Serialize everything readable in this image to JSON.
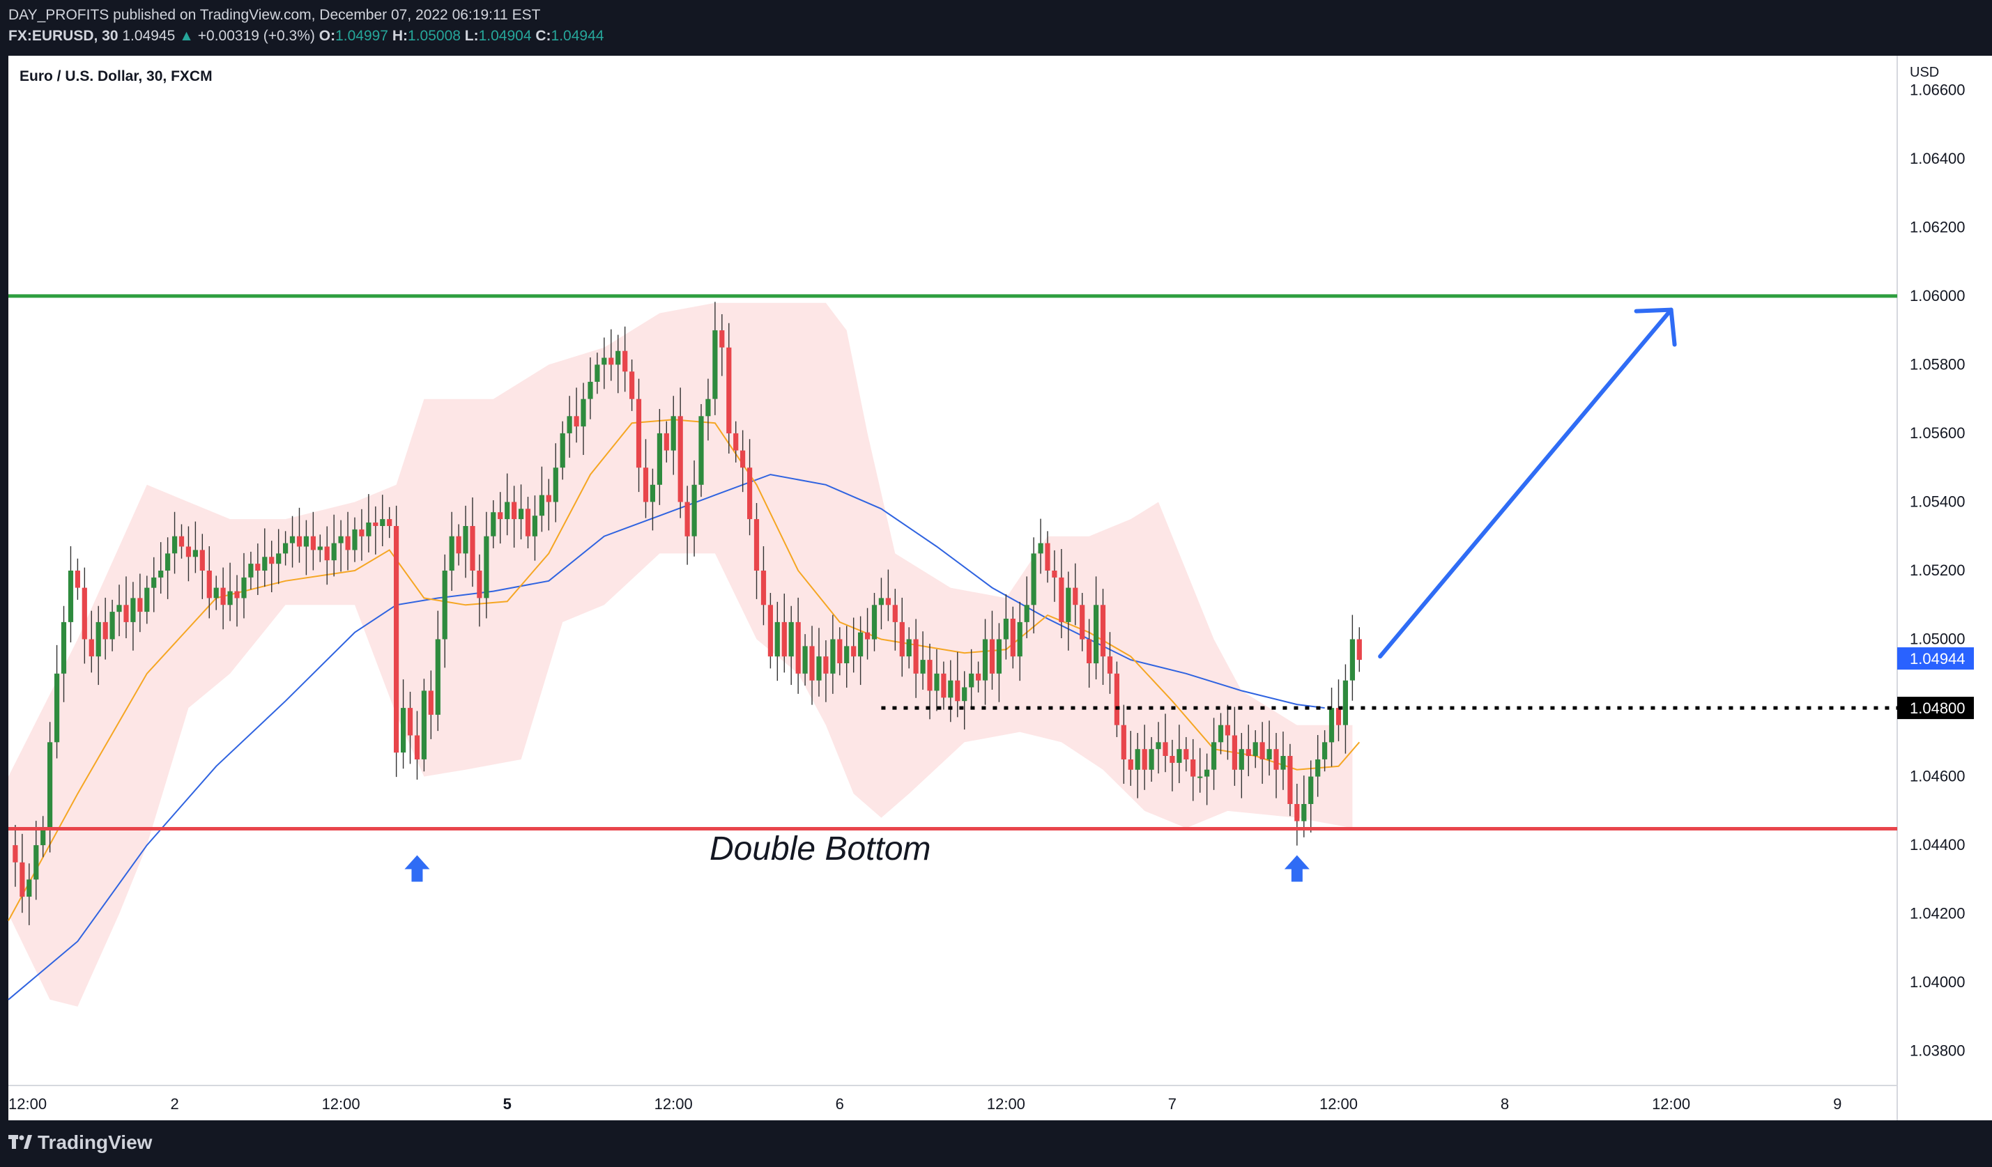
{
  "header": {
    "author": "DAY_PROFITS",
    "publish_text": "published on TradingView.com, December 07, 2022 06:19:11 EST",
    "symbol": "FX:EURUSD, 30",
    "last_price": "1.04945",
    "change": "+0.00319 (+0.3%)",
    "open_label": "O:",
    "open": "1.04997",
    "high_label": "H:",
    "high": "1.05008",
    "low_label": "L:",
    "low": "1.04904",
    "close_label": "C:",
    "close": "1.04944"
  },
  "footer": {
    "brand": "TradingView"
  },
  "colors": {
    "background": "#131722",
    "plot_bg": "#ffffff",
    "candle_up": "#2e8b3e",
    "candle_down": "#e8454b",
    "ema_fast": "#f5a623",
    "ema_slow": "#2f63e0",
    "band_fill": "#fde3e3",
    "resistance": "#2e9e3f",
    "support": "#e8454b",
    "arrow": "#2f6cf5",
    "price_badge": "#2962ff"
  },
  "chart_data": {
    "type": "candlestick",
    "title": "Euro / U.S. Dollar, 30, FXCM",
    "currency": "USD",
    "ylim": [
      1.037,
      1.067
    ],
    "y_ticks": [
      "1.06600",
      "1.06400",
      "1.06200",
      "1.06000",
      "1.05800",
      "1.05600",
      "1.05400",
      "1.05200",
      "1.05000",
      "1.04600",
      "1.04400",
      "1.04200",
      "1.04000",
      "1.03800"
    ],
    "y_tick_values": [
      1.066,
      1.064,
      1.062,
      1.06,
      1.058,
      1.056,
      1.054,
      1.052,
      1.05,
      1.046,
      1.044,
      1.042,
      1.04,
      1.038
    ],
    "x_ticks": [
      {
        "label": "12:00",
        "t": 0
      },
      {
        "label": "2",
        "t": 24
      },
      {
        "label": "12:00",
        "t": 48
      },
      {
        "label": "5",
        "t": 72
      },
      {
        "label": "12:00",
        "t": 96
      },
      {
        "label": "6",
        "t": 120
      },
      {
        "label": "12:00",
        "t": 144
      },
      {
        "label": "7",
        "t": 168
      },
      {
        "label": "12:00",
        "t": 192
      },
      {
        "label": "8",
        "t": 216
      },
      {
        "label": "12:00",
        "t": 240
      },
      {
        "label": "9",
        "t": 264
      }
    ],
    "x_range": [
      0,
      272
    ],
    "resistance_level": 1.06,
    "support_level": 1.04448,
    "neckline_level": 1.048,
    "neckline_label": "1.04800",
    "current_price": 1.04944,
    "current_price_label": "1.04944",
    "annotation": "Double Bottom",
    "bottom_markers_t": [
      59,
      186
    ],
    "projection": {
      "from": [
        198,
        1.0495
      ],
      "to": [
        240,
        1.0596
      ]
    },
    "close_path": [
      [
        0,
        1.044
      ],
      [
        1,
        1.0435
      ],
      [
        2,
        1.0425
      ],
      [
        3,
        1.043
      ],
      [
        4,
        1.044
      ],
      [
        5,
        1.0445
      ],
      [
        6,
        1.047
      ],
      [
        7,
        1.049
      ],
      [
        8,
        1.0505
      ],
      [
        9,
        1.052
      ],
      [
        10,
        1.0515
      ],
      [
        11,
        1.05
      ],
      [
        12,
        1.0495
      ],
      [
        13,
        1.0505
      ],
      [
        14,
        1.05
      ],
      [
        15,
        1.0508
      ],
      [
        16,
        1.051
      ],
      [
        17,
        1.0505
      ],
      [
        18,
        1.0512
      ],
      [
        19,
        1.0508
      ],
      [
        20,
        1.0515
      ],
      [
        21,
        1.0518
      ],
      [
        22,
        1.052
      ],
      [
        23,
        1.0525
      ],
      [
        24,
        1.053
      ],
      [
        25,
        1.0527
      ],
      [
        26,
        1.0524
      ],
      [
        27,
        1.0526
      ],
      [
        28,
        1.052
      ],
      [
        29,
        1.0512
      ],
      [
        30,
        1.0515
      ],
      [
        31,
        1.051
      ],
      [
        32,
        1.0514
      ],
      [
        33,
        1.0512
      ],
      [
        34,
        1.0518
      ],
      [
        35,
        1.0522
      ],
      [
        36,
        1.052
      ],
      [
        37,
        1.0524
      ],
      [
        38,
        1.0522
      ],
      [
        39,
        1.0525
      ],
      [
        40,
        1.0528
      ],
      [
        41,
        1.053
      ],
      [
        42,
        1.0527
      ],
      [
        43,
        1.053
      ],
      [
        44,
        1.0526
      ],
      [
        45,
        1.0527
      ],
      [
        46,
        1.0523
      ],
      [
        47,
        1.0528
      ],
      [
        48,
        1.053
      ],
      [
        49,
        1.0526
      ],
      [
        50,
        1.0532
      ],
      [
        51,
        1.053
      ],
      [
        52,
        1.0534
      ],
      [
        53,
        1.0533
      ],
      [
        54,
        1.0535
      ],
      [
        55,
        1.0533
      ],
      [
        56,
        1.0467
      ],
      [
        57,
        1.048
      ],
      [
        58,
        1.0472
      ],
      [
        59,
        1.0465
      ],
      [
        60,
        1.0485
      ],
      [
        61,
        1.0478
      ],
      [
        62,
        1.05
      ],
      [
        63,
        1.052
      ],
      [
        64,
        1.053
      ],
      [
        65,
        1.0525
      ],
      [
        66,
        1.0533
      ],
      [
        67,
        1.052
      ],
      [
        68,
        1.0512
      ],
      [
        69,
        1.053
      ],
      [
        70,
        1.0537
      ],
      [
        71,
        1.0535
      ],
      [
        72,
        1.054
      ],
      [
        73,
        1.0535
      ],
      [
        74,
        1.0538
      ],
      [
        75,
        1.053
      ],
      [
        76,
        1.0536
      ],
      [
        77,
        1.0542
      ],
      [
        78,
        1.054
      ],
      [
        79,
        1.055
      ],
      [
        80,
        1.056
      ],
      [
        81,
        1.0565
      ],
      [
        82,
        1.0562
      ],
      [
        83,
        1.057
      ],
      [
        84,
        1.0575
      ],
      [
        85,
        1.058
      ],
      [
        86,
        1.0582
      ],
      [
        87,
        1.058
      ],
      [
        88,
        1.0584
      ],
      [
        89,
        1.0578
      ],
      [
        90,
        1.057
      ],
      [
        91,
        1.055
      ],
      [
        92,
        1.054
      ],
      [
        93,
        1.0545
      ],
      [
        94,
        1.056
      ],
      [
        95,
        1.0555
      ],
      [
        96,
        1.0565
      ],
      [
        97,
        1.054
      ],
      [
        98,
        1.053
      ],
      [
        99,
        1.0545
      ],
      [
        100,
        1.0565
      ],
      [
        101,
        1.057
      ],
      [
        102,
        1.059
      ],
      [
        103,
        1.0585
      ],
      [
        104,
        1.056
      ],
      [
        105,
        1.0555
      ],
      [
        106,
        1.055
      ],
      [
        107,
        1.0535
      ],
      [
        108,
        1.052
      ],
      [
        109,
        1.051
      ],
      [
        110,
        1.0495
      ],
      [
        111,
        1.0505
      ],
      [
        112,
        1.0495
      ],
      [
        113,
        1.0505
      ],
      [
        114,
        1.049
      ],
      [
        115,
        1.0498
      ],
      [
        116,
        1.0488
      ],
      [
        117,
        1.0495
      ],
      [
        118,
        1.049
      ],
      [
        119,
        1.05
      ],
      [
        120,
        1.0493
      ],
      [
        121,
        1.0498
      ],
      [
        122,
        1.0495
      ],
      [
        123,
        1.0502
      ],
      [
        124,
        1.05
      ],
      [
        125,
        1.051
      ],
      [
        126,
        1.0512
      ],
      [
        127,
        1.051
      ],
      [
        128,
        1.0505
      ],
      [
        129,
        1.0495
      ],
      [
        130,
        1.05
      ],
      [
        131,
        1.049
      ],
      [
        132,
        1.0494
      ],
      [
        133,
        1.0485
      ],
      [
        134,
        1.049
      ],
      [
        135,
        1.0483
      ],
      [
        136,
        1.0488
      ],
      [
        137,
        1.0482
      ],
      [
        138,
        1.0486
      ],
      [
        139,
        1.049
      ],
      [
        140,
        1.0488
      ],
      [
        141,
        1.05
      ],
      [
        142,
        1.049
      ],
      [
        143,
        1.05
      ],
      [
        144,
        1.0506
      ],
      [
        145,
        1.0495
      ],
      [
        146,
        1.0505
      ],
      [
        147,
        1.051
      ],
      [
        148,
        1.0525
      ],
      [
        149,
        1.0528
      ],
      [
        150,
        1.052
      ],
      [
        151,
        1.0518
      ],
      [
        152,
        1.0505
      ],
      [
        153,
        1.0515
      ],
      [
        154,
        1.051
      ],
      [
        155,
        1.05
      ],
      [
        156,
        1.0493
      ],
      [
        157,
        1.051
      ],
      [
        158,
        1.0495
      ],
      [
        159,
        1.049
      ],
      [
        160,
        1.0475
      ],
      [
        161,
        1.0465
      ],
      [
        162,
        1.0462
      ],
      [
        163,
        1.0468
      ],
      [
        164,
        1.0462
      ],
      [
        165,
        1.0468
      ],
      [
        166,
        1.047
      ],
      [
        167,
        1.0466
      ],
      [
        168,
        1.0464
      ],
      [
        169,
        1.0468
      ],
      [
        170,
        1.0465
      ],
      [
        171,
        1.046
      ],
      [
        172,
        1.046
      ],
      [
        173,
        1.0462
      ],
      [
        174,
        1.047
      ],
      [
        175,
        1.0475
      ],
      [
        176,
        1.0472
      ],
      [
        177,
        1.0462
      ],
      [
        178,
        1.0468
      ],
      [
        179,
        1.0466
      ],
      [
        180,
        1.047
      ],
      [
        181,
        1.0465
      ],
      [
        182,
        1.0468
      ],
      [
        183,
        1.0462
      ],
      [
        184,
        1.0466
      ],
      [
        185,
        1.0452
      ],
      [
        186,
        1.0447
      ],
      [
        187,
        1.0452
      ],
      [
        188,
        1.046
      ],
      [
        189,
        1.0465
      ],
      [
        190,
        1.047
      ],
      [
        191,
        1.048
      ],
      [
        192,
        1.0475
      ],
      [
        193,
        1.0488
      ],
      [
        194,
        1.05
      ],
      [
        195,
        1.0494
      ]
    ],
    "ema_fast": [
      [
        0,
        1.0418
      ],
      [
        10,
        1.0455
      ],
      [
        20,
        1.049
      ],
      [
        30,
        1.0512
      ],
      [
        40,
        1.0517
      ],
      [
        50,
        1.052
      ],
      [
        55,
        1.0526
      ],
      [
        60,
        1.0512
      ],
      [
        66,
        1.051
      ],
      [
        72,
        1.0511
      ],
      [
        78,
        1.0525
      ],
      [
        84,
        1.0548
      ],
      [
        90,
        1.0563
      ],
      [
        96,
        1.0564
      ],
      [
        102,
        1.0563
      ],
      [
        108,
        1.0545
      ],
      [
        114,
        1.052
      ],
      [
        120,
        1.0505
      ],
      [
        126,
        1.05
      ],
      [
        132,
        1.0498
      ],
      [
        138,
        1.0496
      ],
      [
        144,
        1.0497
      ],
      [
        150,
        1.0507
      ],
      [
        156,
        1.0502
      ],
      [
        162,
        1.0495
      ],
      [
        168,
        1.0482
      ],
      [
        174,
        1.0468
      ],
      [
        180,
        1.0466
      ],
      [
        186,
        1.0462
      ],
      [
        192,
        1.0463
      ],
      [
        195,
        1.047
      ]
    ],
    "ema_slow": [
      [
        0,
        1.0395
      ],
      [
        10,
        1.0412
      ],
      [
        20,
        1.044
      ],
      [
        30,
        1.0463
      ],
      [
        40,
        1.0482
      ],
      [
        50,
        1.0502
      ],
      [
        56,
        1.051
      ],
      [
        62,
        1.0512
      ],
      [
        70,
        1.0514
      ],
      [
        78,
        1.0517
      ],
      [
        86,
        1.053
      ],
      [
        94,
        1.0536
      ],
      [
        102,
        1.0542
      ],
      [
        110,
        1.0548
      ],
      [
        118,
        1.0545
      ],
      [
        126,
        1.0538
      ],
      [
        134,
        1.0527
      ],
      [
        142,
        1.0515
      ],
      [
        150,
        1.0506
      ],
      [
        156,
        1.05
      ],
      [
        162,
        1.0494
      ],
      [
        170,
        1.049
      ],
      [
        178,
        1.0485
      ],
      [
        186,
        1.0481
      ],
      [
        190,
        1.048
      ]
    ],
    "band_upper": [
      [
        0,
        1.046
      ],
      [
        10,
        1.05
      ],
      [
        20,
        1.0545
      ],
      [
        26,
        1.054
      ],
      [
        32,
        1.0535
      ],
      [
        40,
        1.0535
      ],
      [
        50,
        1.054
      ],
      [
        56,
        1.0545
      ],
      [
        60,
        1.057
      ],
      [
        70,
        1.057
      ],
      [
        78,
        1.058
      ],
      [
        86,
        1.0585
      ],
      [
        94,
        1.0595
      ],
      [
        102,
        1.0598
      ],
      [
        110,
        1.0598
      ],
      [
        118,
        1.0598
      ],
      [
        121,
        1.059
      ],
      [
        124,
        1.056
      ],
      [
        128,
        1.0525
      ],
      [
        136,
        1.0515
      ],
      [
        144,
        1.0512
      ],
      [
        150,
        1.053
      ],
      [
        156,
        1.053
      ],
      [
        162,
        1.0535
      ],
      [
        166,
        1.054
      ],
      [
        170,
        1.052
      ],
      [
        174,
        1.05
      ],
      [
        178,
        1.0485
      ],
      [
        186,
        1.0475
      ],
      [
        194,
        1.0475
      ]
    ],
    "band_lower": [
      [
        0,
        1.042
      ],
      [
        6,
        1.0395
      ],
      [
        10,
        1.0393
      ],
      [
        16,
        1.042
      ],
      [
        20,
        1.044
      ],
      [
        26,
        1.048
      ],
      [
        32,
        1.049
      ],
      [
        40,
        1.051
      ],
      [
        50,
        1.051
      ],
      [
        56,
        1.0478
      ],
      [
        60,
        1.046
      ],
      [
        66,
        1.0462
      ],
      [
        74,
        1.0465
      ],
      [
        80,
        1.0505
      ],
      [
        86,
        1.051
      ],
      [
        94,
        1.0525
      ],
      [
        102,
        1.0525
      ],
      [
        108,
        1.05
      ],
      [
        114,
        1.049
      ],
      [
        118,
        1.0475
      ],
      [
        122,
        1.0455
      ],
      [
        126,
        1.0448
      ],
      [
        130,
        1.0455
      ],
      [
        138,
        1.047
      ],
      [
        146,
        1.0473
      ],
      [
        152,
        1.047
      ],
      [
        158,
        1.0462
      ],
      [
        164,
        1.045
      ],
      [
        170,
        1.0445
      ],
      [
        176,
        1.045
      ],
      [
        186,
        1.0448
      ],
      [
        194,
        1.0445
      ]
    ]
  }
}
